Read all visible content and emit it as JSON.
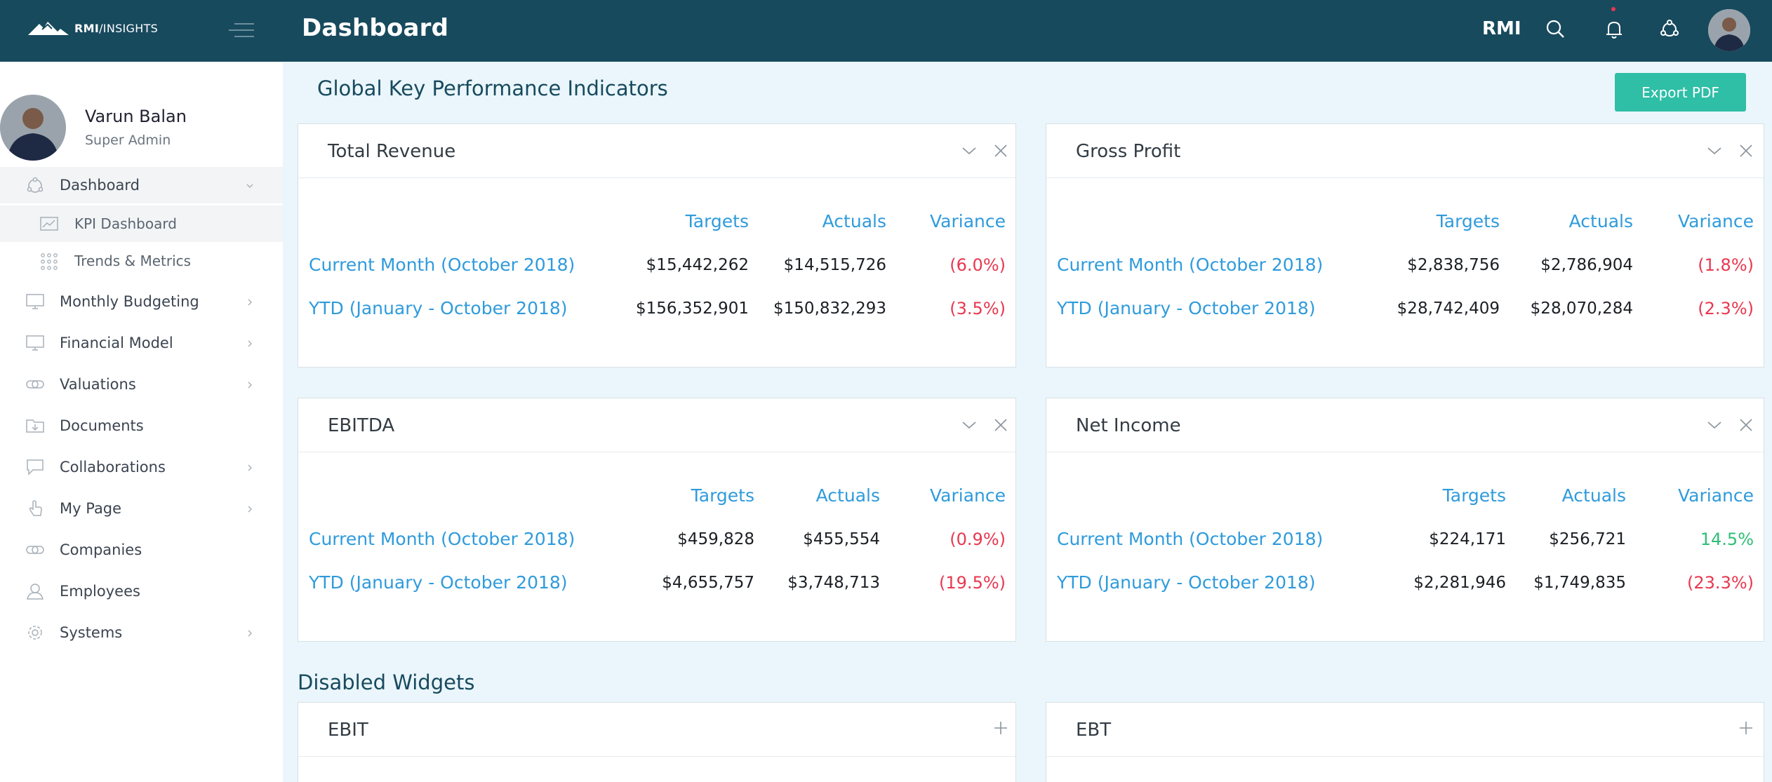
{
  "header": {
    "logo_text_bold": "RMI",
    "logo_text_rest": "/INSIGHTS",
    "page_title": "Dashboard",
    "brand": "RMI"
  },
  "profile": {
    "name": "Varun Balan",
    "role": "Super Admin"
  },
  "sidebar": {
    "items": [
      {
        "label": "Dashboard",
        "icon": "dashboard-icon"
      },
      {
        "label": "KPI Dashboard",
        "icon": "chart-icon"
      },
      {
        "label": "Trends & Metrics",
        "icon": "grid-dots-icon"
      },
      {
        "label": "Monthly Budgeting",
        "icon": "monitor-icon"
      },
      {
        "label": "Financial Model",
        "icon": "monitor-icon"
      },
      {
        "label": "Valuations",
        "icon": "link-icon"
      },
      {
        "label": "Documents",
        "icon": "folder-download-icon"
      },
      {
        "label": "Collaborations",
        "icon": "chat-icon"
      },
      {
        "label": "My Page",
        "icon": "hand-pointer-icon"
      },
      {
        "label": "Companies",
        "icon": "link-icon"
      },
      {
        "label": "Employees",
        "icon": "user-icon"
      },
      {
        "label": "Systems",
        "icon": "gear-icon"
      }
    ]
  },
  "main": {
    "kpi_title": "Global Key Performance Indicators",
    "export_label": "Export PDF",
    "disabled_title": "Disabled Widgets",
    "columns": {
      "targets": "Targets",
      "actuals": "Actuals",
      "variance": "Variance"
    },
    "cards": [
      {
        "title": "Total Revenue",
        "rows": [
          {
            "label": "Current Month (October 2018)",
            "target": "$15,442,262",
            "actual": "$14,515,726",
            "variance": "(6.0%)"
          },
          {
            "label": "YTD (January - October 2018)",
            "target": "$156,352,901",
            "actual": "$150,832,293",
            "variance": "(3.5%)"
          }
        ]
      },
      {
        "title": "Gross Profit",
        "rows": [
          {
            "label": "Current Month (October 2018)",
            "target": "$2,838,756",
            "actual": "$2,786,904",
            "variance": "(1.8%)"
          },
          {
            "label": "YTD (January - October 2018)",
            "target": "$28,742,409",
            "actual": "$28,070,284",
            "variance": "(2.3%)"
          }
        ]
      },
      {
        "title": "EBITDA",
        "rows": [
          {
            "label": "Current Month (October 2018)",
            "target": "$459,828",
            "actual": "$455,554",
            "variance": "(0.9%)"
          },
          {
            "label": "YTD (January - October 2018)",
            "target": "$4,655,757",
            "actual": "$3,748,713",
            "variance": "(19.5%)"
          }
        ]
      },
      {
        "title": "Net Income",
        "rows": [
          {
            "label": "Current Month (October 2018)",
            "target": "$224,171",
            "actual": "$256,721",
            "variance": "14.5%"
          },
          {
            "label": "YTD (January - October 2018)",
            "target": "$2,281,946",
            "actual": "$1,749,835",
            "variance": "(23.3%)"
          }
        ]
      }
    ],
    "disabled_cards": [
      {
        "title": "EBIT"
      },
      {
        "title": "EBT"
      }
    ]
  },
  "colors": {
    "topbar": "#184a5e",
    "accent_blue": "#2f9bdc",
    "button_teal": "#2fbea6",
    "negative": "#e8384f",
    "positive": "#2fbe76"
  }
}
